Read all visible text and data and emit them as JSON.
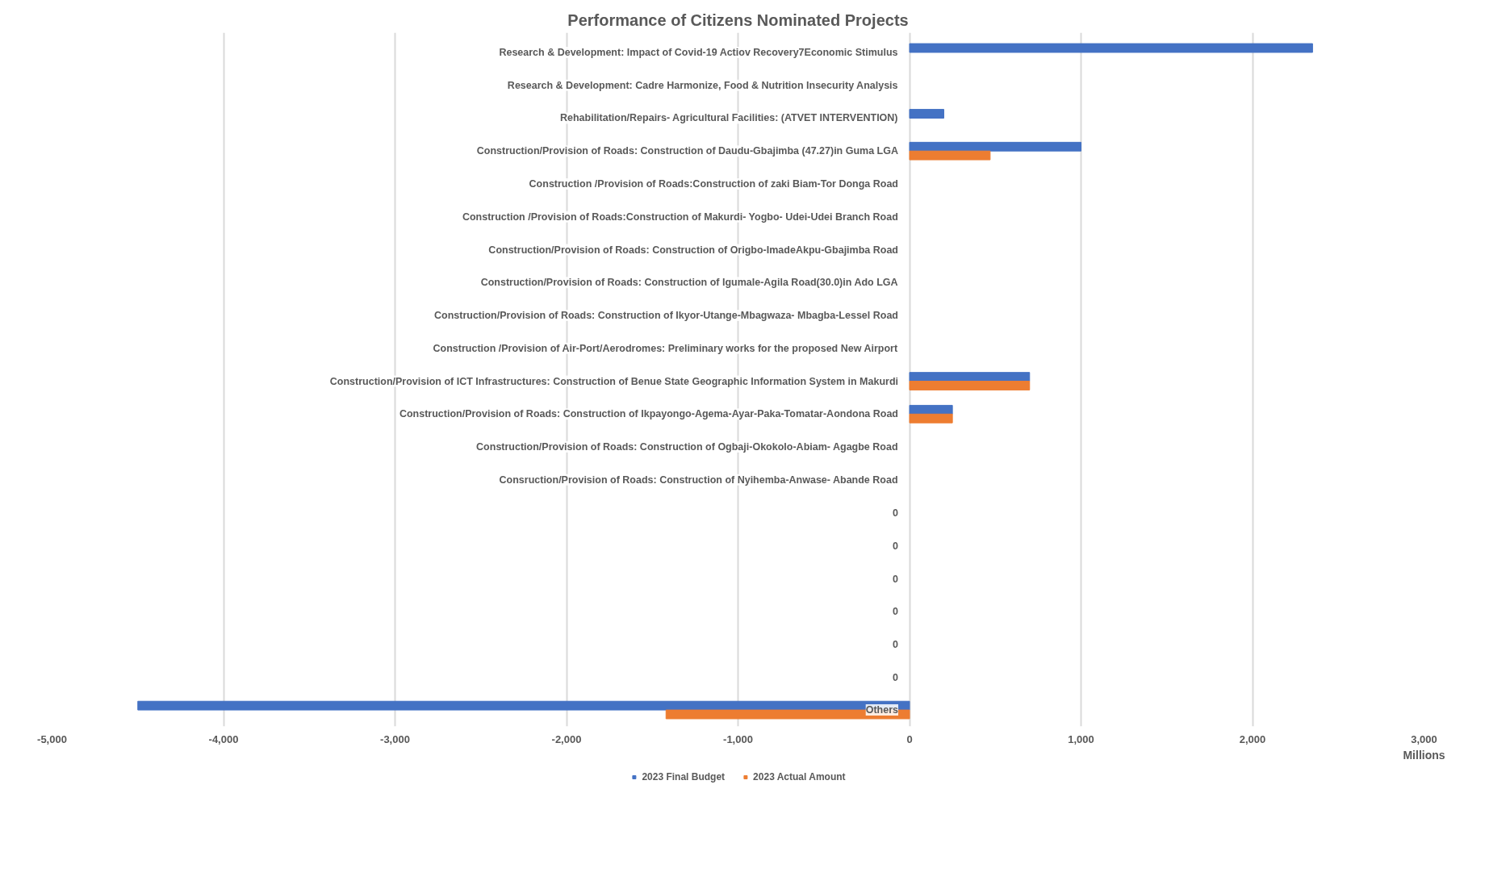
{
  "chart_data": {
    "type": "bar",
    "orientation": "horizontal",
    "title": "Performance of Citizens Nominated Projects",
    "xlabel": "Millions",
    "categories": [
      "Research & Development: Impact of Covid-19 Actiov Recovery7Economic Stimulus",
      "Research & Development: Cadre Harmonize, Food & Nutrition Insecurity Analysis",
      "Rehabilitation/Repairs- Agricultural Facilities: (ATVET INTERVENTION)",
      "Construction/Provision of Roads: Construction of Daudu-Gbajimba (47.27)in Guma LGA",
      "Construction /Provision of Roads:Construction of zaki Biam-Tor Donga Road",
      "Construction /Provision of Roads:Construction of Makurdi- Yogbo- Udei-Udei Branch Road",
      "Construction/Provision of Roads: Construction of Origbo-ImadeAkpu-Gbajimba Road",
      "Construction/Provision of Roads: Construction of Igumale-Agila Road(30.0)in Ado LGA",
      "Construction/Provision of Roads: Construction of Ikyor-Utange-Mbagwaza- Mbagba-Lessel Road",
      "Construction /Provision of Air-Port/Aerodromes: Preliminary works for the proposed New Airport",
      "Construction/Provision of ICT Infrastructures: Construction of Benue State Geographic Information System in Makurdi",
      "Construction/Provision of Roads: Construction of Ikpayongo-Agema-Ayar-Paka-Tomatar-Aondona Road",
      "Construction/Provision of Roads: Construction of Ogbaji-Okokolo-Abiam- Agagbe Road",
      "Consruction/Provision of Roads: Construction of Nyihemba-Anwase- Abande Road",
      "0",
      "0",
      "0",
      "0",
      "0",
      "0",
      "Others"
    ],
    "series": [
      {
        "name": "2023 Final Budget",
        "color": "#4472c4",
        "values": [
          2350,
          null,
          200,
          1000,
          null,
          null,
          null,
          null,
          null,
          null,
          700,
          250,
          null,
          null,
          null,
          null,
          null,
          null,
          null,
          null,
          -4500
        ]
      },
      {
        "name": "2023 Actual Amount",
        "color": "#ed7d31",
        "values": [
          null,
          null,
          null,
          470,
          null,
          null,
          null,
          null,
          null,
          null,
          700,
          250,
          null,
          null,
          null,
          null,
          null,
          null,
          null,
          null,
          -1420
        ]
      }
    ],
    "xlim": [
      -5000,
      3000
    ],
    "xticks": [
      {
        "value": -5000,
        "label": "-5,000"
      },
      {
        "value": -4000,
        "label": "-4,000"
      },
      {
        "value": -3000,
        "label": "-3,000"
      },
      {
        "value": -2000,
        "label": "-2,000"
      },
      {
        "value": -1000,
        "label": "-1,000"
      },
      0,
      {
        "value": 1000,
        "label": "1,000"
      },
      {
        "value": 2000,
        "label": "2,000"
      },
      {
        "value": 3000,
        "label": "3,000"
      }
    ],
    "grid": "x",
    "legend": "bottom"
  }
}
